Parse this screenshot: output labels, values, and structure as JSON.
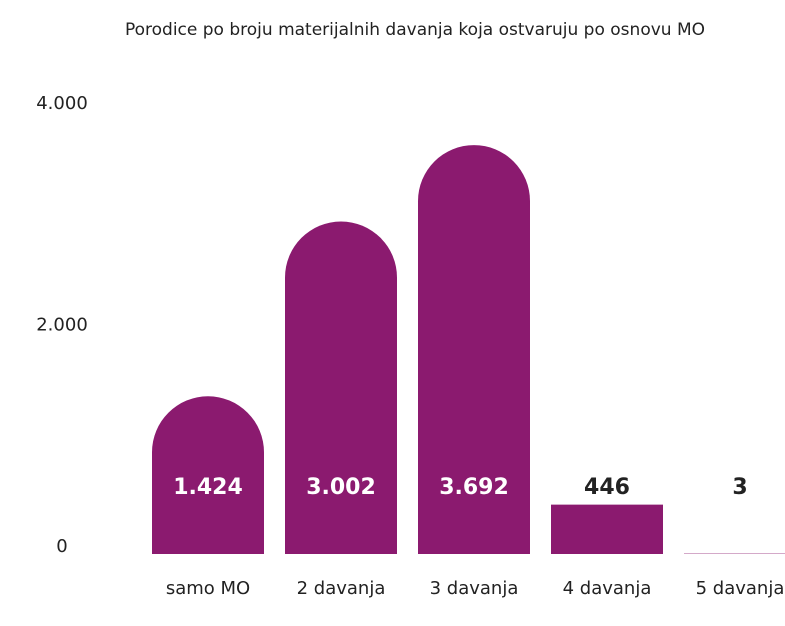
{
  "chart_data": {
    "type": "bar",
    "title": "Porodice po broju materijalnih davanja koja ostvaruju po osnovu MO",
    "categories": [
      "samo MO",
      "2 davanja",
      "3 davanja",
      "4 davanja",
      "5 davanja"
    ],
    "values": [
      1424,
      3002,
      3692,
      446,
      3
    ],
    "value_labels": [
      "1.424",
      "3.002",
      "3.692",
      "446",
      "3"
    ],
    "color": "#8b1a6f",
    "ylim": [
      0,
      4000
    ],
    "yticks": [
      0,
      {
        "value": 2000,
        "label": "2.000"
      },
      {
        "value": 4000,
        "label": "4.000"
      }
    ],
    "grid": false
  }
}
